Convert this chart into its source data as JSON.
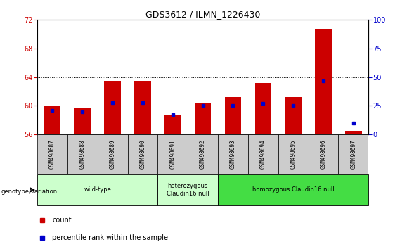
{
  "title": "GDS3612 / ILMN_1226430",
  "samples": [
    "GSM498687",
    "GSM498688",
    "GSM498689",
    "GSM498690",
    "GSM498691",
    "GSM498692",
    "GSM498693",
    "GSM498694",
    "GSM498695",
    "GSM498696",
    "GSM498697"
  ],
  "bar_base": 56,
  "bar_values": [
    60.0,
    59.7,
    63.5,
    63.5,
    58.8,
    60.4,
    61.2,
    63.2,
    61.2,
    70.8,
    56.5
  ],
  "percentile_values": [
    21,
    20,
    28,
    28,
    17,
    25,
    25,
    27,
    25,
    47,
    10
  ],
  "ylim_left": [
    56,
    72
  ],
  "ylim_right": [
    0,
    100
  ],
  "yticks_left": [
    56,
    60,
    64,
    68,
    72
  ],
  "yticks_right": [
    0,
    25,
    50,
    75,
    100
  ],
  "bar_color": "#cc0000",
  "percentile_color": "#0000cc",
  "bar_width": 0.55,
  "groups": [
    {
      "label": "wild-type",
      "start": 0,
      "end": 3,
      "color": "#ccffcc"
    },
    {
      "label": "heterozygous\nClaudin16 null",
      "start": 4,
      "end": 5,
      "color": "#ccffcc"
    },
    {
      "label": "homozygous Claudin16 null",
      "start": 6,
      "end": 10,
      "color": "#44dd44"
    }
  ],
  "xlabel_left": "genotype/variation",
  "legend_count_color": "#cc0000",
  "legend_percentile_color": "#0000cc",
  "tick_label_color_left": "#cc0000",
  "tick_label_color_right": "#0000cc",
  "plot_bg_color": "#ffffff",
  "sample_box_color": "#cccccc",
  "grid_lines": [
    60,
    64,
    68
  ],
  "right_axis_label": "100%"
}
